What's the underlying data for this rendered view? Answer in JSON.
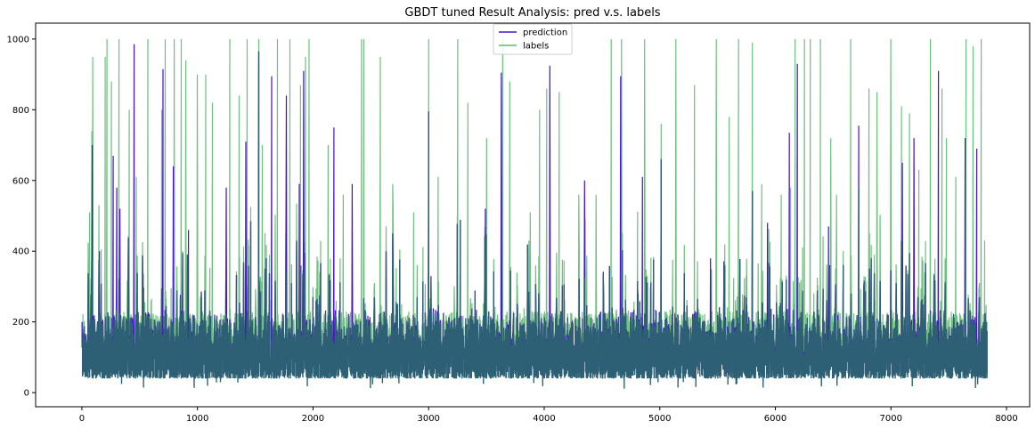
{
  "chart_data": {
    "type": "line",
    "title": "GBDT tuned Result Analysis: pred v.s. labels",
    "xlabel": "",
    "ylabel": "",
    "xlim": [
      -400,
      8200
    ],
    "ylim": [
      -40,
      1045
    ],
    "x_ticks": [
      0,
      1000,
      2000,
      3000,
      4000,
      5000,
      6000,
      7000,
      8000
    ],
    "y_ticks": [
      0,
      200,
      400,
      600,
      800,
      1000
    ],
    "n_points": 7833,
    "legend_position": "top-center",
    "series": [
      {
        "name": "labels",
        "color": "#5fba72",
        "baseline": 110
      },
      {
        "name": "prediction",
        "color": "#4a12cc",
        "baseline": 115
      }
    ],
    "label_peaks": [
      {
        "x": 65,
        "y": 510
      },
      {
        "x": 85,
        "y": 740
      },
      {
        "x": 95,
        "y": 950
      },
      {
        "x": 200,
        "y": 950
      },
      {
        "x": 215,
        "y": 1000
      },
      {
        "x": 255,
        "y": 880
      },
      {
        "x": 320,
        "y": 1000
      },
      {
        "x": 410,
        "y": 800
      },
      {
        "x": 470,
        "y": 610
      },
      {
        "x": 570,
        "y": 1000
      },
      {
        "x": 690,
        "y": 800
      },
      {
        "x": 720,
        "y": 1000
      },
      {
        "x": 800,
        "y": 1000
      },
      {
        "x": 860,
        "y": 1000
      },
      {
        "x": 900,
        "y": 940
      },
      {
        "x": 1000,
        "y": 900
      },
      {
        "x": 1070,
        "y": 900
      },
      {
        "x": 1130,
        "y": 820
      },
      {
        "x": 1280,
        "y": 1000
      },
      {
        "x": 1360,
        "y": 840
      },
      {
        "x": 1430,
        "y": 1000
      },
      {
        "x": 1530,
        "y": 1000
      },
      {
        "x": 1560,
        "y": 700
      },
      {
        "x": 1690,
        "y": 1000
      },
      {
        "x": 1800,
        "y": 1000
      },
      {
        "x": 1890,
        "y": 870
      },
      {
        "x": 1935,
        "y": 950
      },
      {
        "x": 1965,
        "y": 1000
      },
      {
        "x": 2130,
        "y": 700
      },
      {
        "x": 2260,
        "y": 560
      },
      {
        "x": 2420,
        "y": 1000
      },
      {
        "x": 2440,
        "y": 1000
      },
      {
        "x": 2580,
        "y": 950
      },
      {
        "x": 2690,
        "y": 590
      },
      {
        "x": 2870,
        "y": 510
      },
      {
        "x": 3000,
        "y": 1000
      },
      {
        "x": 3080,
        "y": 610
      },
      {
        "x": 3250,
        "y": 1000
      },
      {
        "x": 3340,
        "y": 820
      },
      {
        "x": 3500,
        "y": 720
      },
      {
        "x": 3640,
        "y": 1000
      },
      {
        "x": 3700,
        "y": 880
      },
      {
        "x": 3880,
        "y": 510
      },
      {
        "x": 3960,
        "y": 800
      },
      {
        "x": 4020,
        "y": 860
      },
      {
        "x": 4130,
        "y": 850
      },
      {
        "x": 4300,
        "y": 560
      },
      {
        "x": 4450,
        "y": 560
      },
      {
        "x": 4580,
        "y": 1000
      },
      {
        "x": 4670,
        "y": 1000
      },
      {
        "x": 4870,
        "y": 1000
      },
      {
        "x": 5010,
        "y": 760
      },
      {
        "x": 5140,
        "y": 1000
      },
      {
        "x": 5300,
        "y": 870
      },
      {
        "x": 5490,
        "y": 1000
      },
      {
        "x": 5600,
        "y": 780
      },
      {
        "x": 5680,
        "y": 1000
      },
      {
        "x": 5800,
        "y": 990
      },
      {
        "x": 5880,
        "y": 590
      },
      {
        "x": 6050,
        "y": 560
      },
      {
        "x": 6130,
        "y": 580
      },
      {
        "x": 6170,
        "y": 1000
      },
      {
        "x": 6250,
        "y": 1000
      },
      {
        "x": 6300,
        "y": 1000
      },
      {
        "x": 6390,
        "y": 1000
      },
      {
        "x": 6480,
        "y": 720
      },
      {
        "x": 6530,
        "y": 560
      },
      {
        "x": 6650,
        "y": 1000
      },
      {
        "x": 6720,
        "y": 580
      },
      {
        "x": 6810,
        "y": 860
      },
      {
        "x": 6880,
        "y": 850
      },
      {
        "x": 7000,
        "y": 1000
      },
      {
        "x": 7090,
        "y": 810
      },
      {
        "x": 7160,
        "y": 790
      },
      {
        "x": 7240,
        "y": 630
      },
      {
        "x": 7340,
        "y": 1000
      },
      {
        "x": 7440,
        "y": 860
      },
      {
        "x": 7480,
        "y": 720
      },
      {
        "x": 7560,
        "y": 610
      },
      {
        "x": 7650,
        "y": 1000
      },
      {
        "x": 7710,
        "y": 980
      },
      {
        "x": 7780,
        "y": 1000
      },
      {
        "x": 7810,
        "y": 430
      }
    ],
    "prediction_peaks": [
      {
        "x": 0,
        "y": 200
      },
      {
        "x": 90,
        "y": 700
      },
      {
        "x": 150,
        "y": 400
      },
      {
        "x": 270,
        "y": 670
      },
      {
        "x": 300,
        "y": 580
      },
      {
        "x": 330,
        "y": 520
      },
      {
        "x": 450,
        "y": 985
      },
      {
        "x": 700,
        "y": 915
      },
      {
        "x": 790,
        "y": 640
      },
      {
        "x": 920,
        "y": 460
      },
      {
        "x": 1250,
        "y": 580
      },
      {
        "x": 1420,
        "y": 710
      },
      {
        "x": 1530,
        "y": 965
      },
      {
        "x": 1640,
        "y": 895
      },
      {
        "x": 1770,
        "y": 840
      },
      {
        "x": 1880,
        "y": 590
      },
      {
        "x": 1920,
        "y": 910
      },
      {
        "x": 2180,
        "y": 750
      },
      {
        "x": 2340,
        "y": 590
      },
      {
        "x": 2690,
        "y": 450
      },
      {
        "x": 3000,
        "y": 795
      },
      {
        "x": 3490,
        "y": 520
      },
      {
        "x": 3630,
        "y": 905
      },
      {
        "x": 4050,
        "y": 925
      },
      {
        "x": 4350,
        "y": 600
      },
      {
        "x": 4660,
        "y": 895
      },
      {
        "x": 4850,
        "y": 610
      },
      {
        "x": 5010,
        "y": 660
      },
      {
        "x": 5440,
        "y": 380
      },
      {
        "x": 5800,
        "y": 570
      },
      {
        "x": 5930,
        "y": 480
      },
      {
        "x": 6120,
        "y": 735
      },
      {
        "x": 6190,
        "y": 930
      },
      {
        "x": 6460,
        "y": 470
      },
      {
        "x": 6720,
        "y": 755
      },
      {
        "x": 7100,
        "y": 650
      },
      {
        "x": 7200,
        "y": 720
      },
      {
        "x": 7410,
        "y": 910
      },
      {
        "x": 7640,
        "y": 720
      },
      {
        "x": 7740,
        "y": 690
      }
    ]
  }
}
